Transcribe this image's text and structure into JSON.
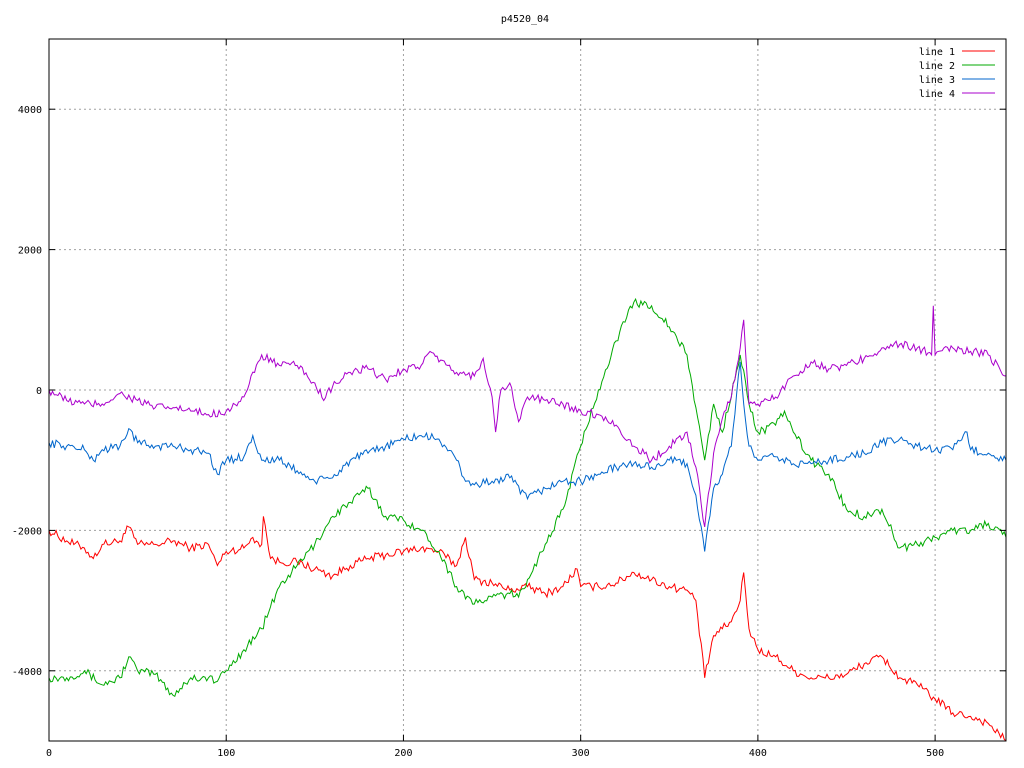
{
  "chart_data": {
    "type": "line",
    "title": "p4520_04",
    "xlabel": "",
    "ylabel": "",
    "xlim": [
      0,
      540
    ],
    "ylim": [
      -5000,
      5000
    ],
    "x_ticks": [
      0,
      100,
      200,
      300,
      400,
      500
    ],
    "y_ticks": [
      -4000,
      -2000,
      0,
      2000,
      4000
    ],
    "grid": true,
    "legend_position": "top-right",
    "series": [
      {
        "name": "line 1",
        "color": "#ff0000",
        "points": [
          [
            0,
            -2000
          ],
          [
            10,
            -2150
          ],
          [
            20,
            -2250
          ],
          [
            25,
            -2400
          ],
          [
            30,
            -2200
          ],
          [
            40,
            -2150
          ],
          [
            45,
            -1950
          ],
          [
            50,
            -2200
          ],
          [
            60,
            -2200
          ],
          [
            70,
            -2150
          ],
          [
            80,
            -2250
          ],
          [
            90,
            -2200
          ],
          [
            95,
            -2500
          ],
          [
            100,
            -2300
          ],
          [
            110,
            -2250
          ],
          [
            115,
            -2100
          ],
          [
            120,
            -2200
          ],
          [
            121,
            -1800
          ],
          [
            125,
            -2400
          ],
          [
            130,
            -2450
          ],
          [
            140,
            -2450
          ],
          [
            150,
            -2550
          ],
          [
            160,
            -2650
          ],
          [
            170,
            -2500
          ],
          [
            180,
            -2400
          ],
          [
            190,
            -2350
          ],
          [
            200,
            -2300
          ],
          [
            210,
            -2250
          ],
          [
            220,
            -2300
          ],
          [
            230,
            -2500
          ],
          [
            235,
            -2100
          ],
          [
            240,
            -2700
          ],
          [
            250,
            -2750
          ],
          [
            260,
            -2850
          ],
          [
            270,
            -2800
          ],
          [
            280,
            -2900
          ],
          [
            290,
            -2800
          ],
          [
            298,
            -2550
          ],
          [
            300,
            -2800
          ],
          [
            310,
            -2800
          ],
          [
            320,
            -2750
          ],
          [
            330,
            -2600
          ],
          [
            340,
            -2700
          ],
          [
            350,
            -2800
          ],
          [
            360,
            -2850
          ],
          [
            365,
            -3000
          ],
          [
            370,
            -4100
          ],
          [
            375,
            -3500
          ],
          [
            380,
            -3400
          ],
          [
            385,
            -3300
          ],
          [
            390,
            -3000
          ],
          [
            392,
            -2600
          ],
          [
            395,
            -3400
          ],
          [
            400,
            -3700
          ],
          [
            410,
            -3800
          ],
          [
            420,
            -4000
          ],
          [
            430,
            -4100
          ],
          [
            440,
            -4100
          ],
          [
            450,
            -4050
          ],
          [
            460,
            -3900
          ],
          [
            470,
            -3800
          ],
          [
            480,
            -4100
          ],
          [
            490,
            -4200
          ],
          [
            500,
            -4400
          ],
          [
            510,
            -4600
          ],
          [
            520,
            -4650
          ],
          [
            530,
            -4750
          ],
          [
            540,
            -5000
          ]
        ]
      },
      {
        "name": "line 2",
        "color": "#00aa00",
        "points": [
          [
            0,
            -4100
          ],
          [
            10,
            -4100
          ],
          [
            20,
            -4000
          ],
          [
            30,
            -4200
          ],
          [
            40,
            -4100
          ],
          [
            45,
            -3800
          ],
          [
            50,
            -4000
          ],
          [
            60,
            -4050
          ],
          [
            70,
            -4350
          ],
          [
            80,
            -4100
          ],
          [
            90,
            -4100
          ],
          [
            95,
            -4150
          ],
          [
            100,
            -4000
          ],
          [
            110,
            -3700
          ],
          [
            120,
            -3400
          ],
          [
            130,
            -2800
          ],
          [
            140,
            -2500
          ],
          [
            150,
            -2200
          ],
          [
            160,
            -1800
          ],
          [
            170,
            -1600
          ],
          [
            180,
            -1400
          ],
          [
            190,
            -1800
          ],
          [
            200,
            -1850
          ],
          [
            210,
            -2000
          ],
          [
            220,
            -2300
          ],
          [
            230,
            -2800
          ],
          [
            240,
            -3050
          ],
          [
            250,
            -2950
          ],
          [
            260,
            -2900
          ],
          [
            265,
            -2950
          ],
          [
            270,
            -2700
          ],
          [
            280,
            -2200
          ],
          [
            290,
            -1700
          ],
          [
            300,
            -800
          ],
          [
            310,
            0
          ],
          [
            320,
            700
          ],
          [
            330,
            1250
          ],
          [
            340,
            1200
          ],
          [
            350,
            900
          ],
          [
            360,
            500
          ],
          [
            370,
            -1000
          ],
          [
            375,
            -200
          ],
          [
            380,
            -600
          ],
          [
            390,
            500
          ],
          [
            395,
            -200
          ],
          [
            400,
            -600
          ],
          [
            410,
            -500
          ],
          [
            415,
            -300
          ],
          [
            420,
            -600
          ],
          [
            430,
            -1000
          ],
          [
            440,
            -1200
          ],
          [
            450,
            -1700
          ],
          [
            460,
            -1800
          ],
          [
            470,
            -1700
          ],
          [
            480,
            -2250
          ],
          [
            490,
            -2200
          ],
          [
            500,
            -2100
          ],
          [
            510,
            -2000
          ],
          [
            520,
            -2000
          ],
          [
            530,
            -1900
          ],
          [
            540,
            -2100
          ]
        ]
      },
      {
        "name": "line 3",
        "color": "#0066cc",
        "points": [
          [
            0,
            -750
          ],
          [
            10,
            -800
          ],
          [
            20,
            -850
          ],
          [
            25,
            -1000
          ],
          [
            30,
            -850
          ],
          [
            40,
            -800
          ],
          [
            45,
            -550
          ],
          [
            50,
            -750
          ],
          [
            60,
            -800
          ],
          [
            70,
            -800
          ],
          [
            80,
            -850
          ],
          [
            90,
            -900
          ],
          [
            95,
            -1200
          ],
          [
            100,
            -1000
          ],
          [
            110,
            -950
          ],
          [
            115,
            -650
          ],
          [
            120,
            -1000
          ],
          [
            130,
            -1000
          ],
          [
            140,
            -1150
          ],
          [
            150,
            -1300
          ],
          [
            160,
            -1250
          ],
          [
            170,
            -1000
          ],
          [
            180,
            -900
          ],
          [
            190,
            -800
          ],
          [
            200,
            -700
          ],
          [
            210,
            -650
          ],
          [
            220,
            -700
          ],
          [
            230,
            -1000
          ],
          [
            235,
            -1300
          ],
          [
            240,
            -1350
          ],
          [
            250,
            -1300
          ],
          [
            260,
            -1250
          ],
          [
            270,
            -1550
          ],
          [
            280,
            -1400
          ],
          [
            290,
            -1300
          ],
          [
            300,
            -1300
          ],
          [
            310,
            -1200
          ],
          [
            320,
            -1100
          ],
          [
            330,
            -1050
          ],
          [
            340,
            -1100
          ],
          [
            350,
            -1000
          ],
          [
            360,
            -1050
          ],
          [
            365,
            -1500
          ],
          [
            370,
            -2300
          ],
          [
            375,
            -1400
          ],
          [
            380,
            -1200
          ],
          [
            385,
            -800
          ],
          [
            390,
            400
          ],
          [
            392,
            -200
          ],
          [
            395,
            -800
          ],
          [
            400,
            -1000
          ],
          [
            410,
            -950
          ],
          [
            420,
            -1050
          ],
          [
            430,
            -1050
          ],
          [
            440,
            -1000
          ],
          [
            450,
            -950
          ],
          [
            460,
            -900
          ],
          [
            470,
            -750
          ],
          [
            480,
            -700
          ],
          [
            490,
            -800
          ],
          [
            500,
            -850
          ],
          [
            510,
            -850
          ],
          [
            518,
            -600
          ],
          [
            520,
            -850
          ],
          [
            530,
            -900
          ],
          [
            540,
            -1000
          ]
        ]
      },
      {
        "name": "line 4",
        "color": "#aa00cc",
        "points": [
          [
            0,
            0
          ],
          [
            10,
            -150
          ],
          [
            20,
            -200
          ],
          [
            30,
            -200
          ],
          [
            40,
            -50
          ],
          [
            50,
            -150
          ],
          [
            60,
            -250
          ],
          [
            70,
            -250
          ],
          [
            80,
            -300
          ],
          [
            90,
            -350
          ],
          [
            100,
            -300
          ],
          [
            110,
            -100
          ],
          [
            120,
            500
          ],
          [
            130,
            350
          ],
          [
            140,
            350
          ],
          [
            150,
            100
          ],
          [
            155,
            -150
          ],
          [
            160,
            50
          ],
          [
            170,
            250
          ],
          [
            180,
            300
          ],
          [
            190,
            150
          ],
          [
            200,
            300
          ],
          [
            210,
            350
          ],
          [
            215,
            550
          ],
          [
            220,
            400
          ],
          [
            230,
            250
          ],
          [
            240,
            200
          ],
          [
            245,
            450
          ],
          [
            250,
            -100
          ],
          [
            252,
            -600
          ],
          [
            255,
            0
          ],
          [
            260,
            100
          ],
          [
            265,
            -450
          ],
          [
            270,
            -100
          ],
          [
            280,
            -150
          ],
          [
            290,
            -200
          ],
          [
            300,
            -300
          ],
          [
            310,
            -350
          ],
          [
            320,
            -500
          ],
          [
            330,
            -800
          ],
          [
            340,
            -1000
          ],
          [
            350,
            -800
          ],
          [
            360,
            -600
          ],
          [
            365,
            -1100
          ],
          [
            370,
            -1950
          ],
          [
            375,
            -900
          ],
          [
            380,
            -400
          ],
          [
            385,
            -100
          ],
          [
            390,
            600
          ],
          [
            392,
            1000
          ],
          [
            395,
            -200
          ],
          [
            400,
            -200
          ],
          [
            410,
            -100
          ],
          [
            420,
            200
          ],
          [
            430,
            400
          ],
          [
            440,
            300
          ],
          [
            450,
            350
          ],
          [
            460,
            450
          ],
          [
            470,
            600
          ],
          [
            480,
            650
          ],
          [
            490,
            600
          ],
          [
            498,
            500
          ],
          [
            499,
            1200
          ],
          [
            500,
            500
          ],
          [
            510,
            600
          ],
          [
            520,
            550
          ],
          [
            530,
            500
          ],
          [
            540,
            200
          ]
        ]
      }
    ]
  }
}
